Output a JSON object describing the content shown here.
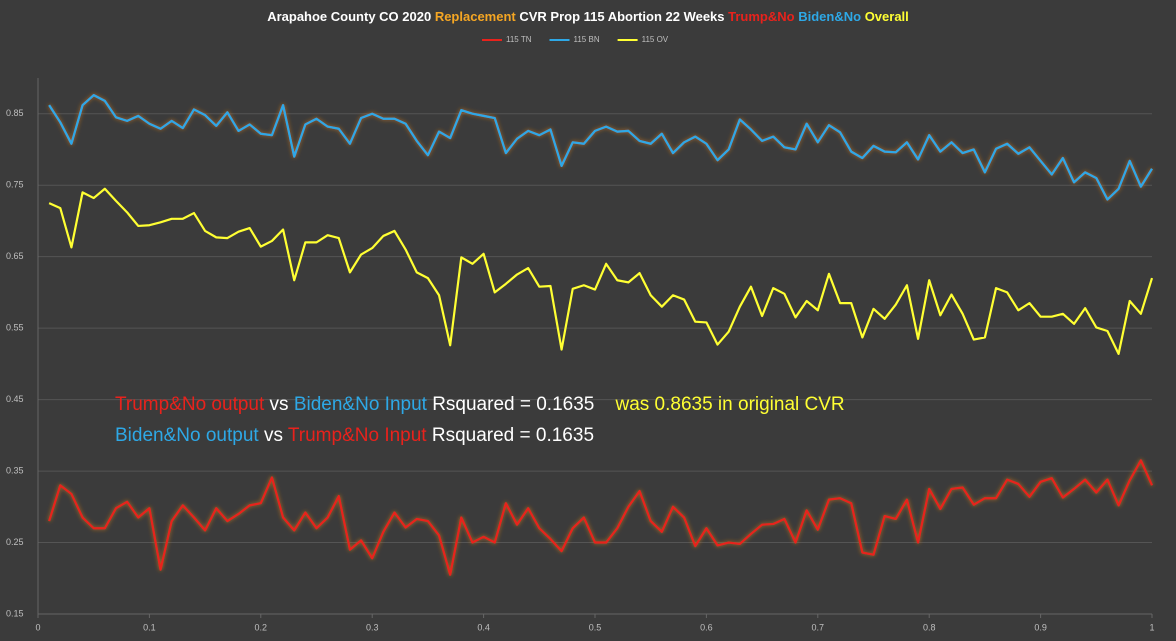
{
  "chart_data": {
    "type": "line",
    "title": [
      {
        "text": "Arapahoe County CO 2020 ",
        "color": "#ffffff"
      },
      {
        "text": "Replacement",
        "color": "#f5a623"
      },
      {
        "text": " CVR Prop 115 Abortion 22 Weeks ",
        "color": "#ffffff"
      },
      {
        "text": "Trump&No",
        "color": "#e8221c"
      },
      {
        "text": " ",
        "color": "#ffffff"
      },
      {
        "text": "Biden&No",
        "color": "#2ea8e6"
      },
      {
        "text": " ",
        "color": "#ffffff"
      },
      {
        "text": "Overall",
        "color": "#ffff33"
      }
    ],
    "annotations": [
      [
        {
          "text": "Trump&No output",
          "color": "#e8221c"
        },
        {
          "text": " vs ",
          "color": "#ffffff"
        },
        {
          "text": "Biden&No Input",
          "color": "#2ea8e6"
        },
        {
          "text": " Rsquared = 0.1635",
          "color": "#ffffff"
        },
        {
          "text": "    was 0.8635 in original CVR",
          "color": "#ffff33"
        }
      ],
      [
        {
          "text": "Biden&No output",
          "color": "#2ea8e6"
        },
        {
          "text": " vs ",
          "color": "#ffffff"
        },
        {
          "text": "Trump&No Input",
          "color": "#e8221c"
        },
        {
          "text": " Rsquared = 0.1635",
          "color": "#ffffff"
        }
      ]
    ],
    "x": [
      0.01,
      0.02,
      0.03,
      0.04,
      0.05,
      0.06,
      0.07,
      0.08,
      0.09,
      0.1,
      0.11,
      0.12,
      0.13,
      0.14,
      0.15,
      0.16,
      0.17,
      0.18,
      0.19,
      0.2,
      0.21,
      0.22,
      0.23,
      0.24,
      0.25,
      0.26,
      0.27,
      0.28,
      0.29,
      0.3,
      0.31,
      0.32,
      0.33,
      0.34,
      0.35,
      0.36,
      0.37,
      0.38,
      0.39,
      0.4,
      0.41,
      0.42,
      0.43,
      0.44,
      0.45,
      0.46,
      0.47,
      0.48,
      0.49,
      0.5,
      0.51,
      0.52,
      0.53,
      0.54,
      0.55,
      0.56,
      0.57,
      0.58,
      0.59,
      0.6,
      0.61,
      0.62,
      0.63,
      0.64,
      0.65,
      0.66,
      0.67,
      0.68,
      0.69,
      0.7,
      0.71,
      0.72,
      0.73,
      0.74,
      0.75,
      0.76,
      0.77,
      0.78,
      0.79,
      0.8,
      0.81,
      0.82,
      0.83,
      0.84,
      0.85,
      0.86,
      0.87,
      0.88,
      0.89,
      0.9,
      0.91,
      0.92,
      0.93,
      0.94,
      0.95,
      0.96,
      0.97,
      0.98,
      0.99,
      1
    ],
    "series": [
      {
        "name": "115 TN",
        "color": "#e8221c",
        "values": [
          0.28,
          0.33,
          0.318,
          0.285,
          0.27,
          0.27,
          0.298,
          0.307,
          0.285,
          0.298,
          0.212,
          0.28,
          0.302,
          0.285,
          0.267,
          0.298,
          0.28,
          0.29,
          0.302,
          0.305,
          0.341,
          0.285,
          0.267,
          0.292,
          0.27,
          0.285,
          0.315,
          0.24,
          0.253,
          0.228,
          0.265,
          0.292,
          0.271,
          0.283,
          0.28,
          0.26,
          0.205,
          0.285,
          0.25,
          0.258,
          0.25,
          0.305,
          0.275,
          0.298,
          0.27,
          0.255,
          0.238,
          0.27,
          0.285,
          0.25,
          0.25,
          0.27,
          0.3,
          0.322,
          0.28,
          0.265,
          0.3,
          0.285,
          0.245,
          0.27,
          0.246,
          0.25,
          0.248,
          0.262,
          0.275,
          0.276,
          0.283,
          0.25,
          0.295,
          0.268,
          0.31,
          0.312,
          0.305,
          0.236,
          0.233,
          0.287,
          0.283,
          0.31,
          0.25,
          0.325,
          0.297,
          0.325,
          0.327,
          0.303,
          0.312,
          0.312,
          0.338,
          0.332,
          0.314,
          0.335,
          0.34,
          0.313,
          0.325,
          0.338,
          0.32,
          0.338,
          0.302,
          0.337,
          0.365,
          0.33
        ]
      },
      {
        "name": "115 BN",
        "color": "#2ea8e6",
        "values": [
          0.862,
          0.838,
          0.808,
          0.862,
          0.876,
          0.868,
          0.845,
          0.84,
          0.847,
          0.836,
          0.829,
          0.84,
          0.83,
          0.856,
          0.848,
          0.833,
          0.852,
          0.826,
          0.835,
          0.822,
          0.82,
          0.862,
          0.79,
          0.835,
          0.843,
          0.832,
          0.829,
          0.808,
          0.844,
          0.85,
          0.843,
          0.843,
          0.836,
          0.812,
          0.792,
          0.825,
          0.816,
          0.855,
          0.85,
          0.847,
          0.844,
          0.795,
          0.815,
          0.826,
          0.82,
          0.828,
          0.777,
          0.81,
          0.808,
          0.826,
          0.832,
          0.825,
          0.826,
          0.812,
          0.808,
          0.822,
          0.795,
          0.81,
          0.818,
          0.808,
          0.785,
          0.8,
          0.842,
          0.828,
          0.812,
          0.818,
          0.803,
          0.8,
          0.836,
          0.81,
          0.834,
          0.824,
          0.797,
          0.788,
          0.805,
          0.797,
          0.796,
          0.81,
          0.786,
          0.82,
          0.797,
          0.81,
          0.795,
          0.8,
          0.768,
          0.801,
          0.808,
          0.794,
          0.803,
          0.784,
          0.765,
          0.788,
          0.754,
          0.768,
          0.76,
          0.73,
          0.745,
          0.784,
          0.748,
          0.773
        ]
      },
      {
        "name": "115 OV",
        "color": "#ffff33",
        "values": [
          0.725,
          0.718,
          0.663,
          0.74,
          0.732,
          0.745,
          0.728,
          0.712,
          0.693,
          0.694,
          0.698,
          0.703,
          0.703,
          0.711,
          0.686,
          0.677,
          0.676,
          0.685,
          0.69,
          0.664,
          0.672,
          0.688,
          0.617,
          0.67,
          0.67,
          0.68,
          0.676,
          0.628,
          0.653,
          0.662,
          0.679,
          0.686,
          0.66,
          0.628,
          0.62,
          0.596,
          0.526,
          0.649,
          0.64,
          0.654,
          0.6,
          0.612,
          0.625,
          0.634,
          0.608,
          0.609,
          0.52,
          0.605,
          0.61,
          0.604,
          0.64,
          0.617,
          0.614,
          0.627,
          0.596,
          0.58,
          0.596,
          0.59,
          0.559,
          0.558,
          0.527,
          0.545,
          0.58,
          0.608,
          0.567,
          0.606,
          0.598,
          0.565,
          0.588,
          0.575,
          0.626,
          0.585,
          0.585,
          0.537,
          0.577,
          0.563,
          0.583,
          0.61,
          0.535,
          0.617,
          0.568,
          0.597,
          0.57,
          0.534,
          0.537,
          0.606,
          0.6,
          0.575,
          0.585,
          0.566,
          0.566,
          0.57,
          0.556,
          0.578,
          0.551,
          0.546,
          0.514,
          0.588,
          0.57,
          0.62
        ]
      }
    ],
    "xlim": [
      0,
      1
    ],
    "xticks": [
      0,
      0.1,
      0.2,
      0.3,
      0.4,
      0.5,
      0.6,
      0.7,
      0.8,
      0.9,
      1
    ],
    "ylim": [
      0.15,
      0.9
    ],
    "yticks": [
      0.15,
      0.25,
      0.35,
      0.45,
      0.55,
      0.65,
      0.75,
      0.85
    ],
    "grid": true,
    "legend": "top"
  }
}
